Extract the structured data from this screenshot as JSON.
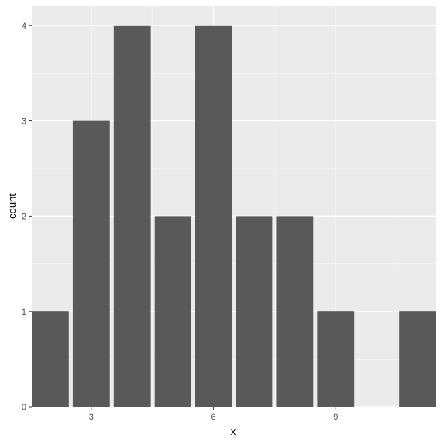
{
  "chart_data": {
    "type": "bar",
    "x": [
      2,
      3,
      4,
      5,
      6,
      7,
      8,
      9,
      11
    ],
    "values": [
      1,
      3,
      4,
      2,
      4,
      2,
      2,
      1,
      1
    ],
    "xlabel": "x",
    "ylabel": "count",
    "xlim": [
      1.55,
      11.45
    ],
    "ylim": [
      0,
      4.2
    ],
    "xticks": [
      3,
      6,
      9
    ],
    "xtick_labels": [
      "3",
      "6",
      "9"
    ],
    "yticks": [
      0,
      1,
      2,
      3,
      4
    ],
    "ytick_labels": [
      "0",
      "1",
      "2",
      "3",
      "4"
    ],
    "grid": true,
    "colors": {
      "bar": "#595959",
      "panel": "#ebebeb",
      "grid_major": "#ffffff",
      "grid_minor": "#f5f5f5",
      "tick": "#333333"
    }
  }
}
